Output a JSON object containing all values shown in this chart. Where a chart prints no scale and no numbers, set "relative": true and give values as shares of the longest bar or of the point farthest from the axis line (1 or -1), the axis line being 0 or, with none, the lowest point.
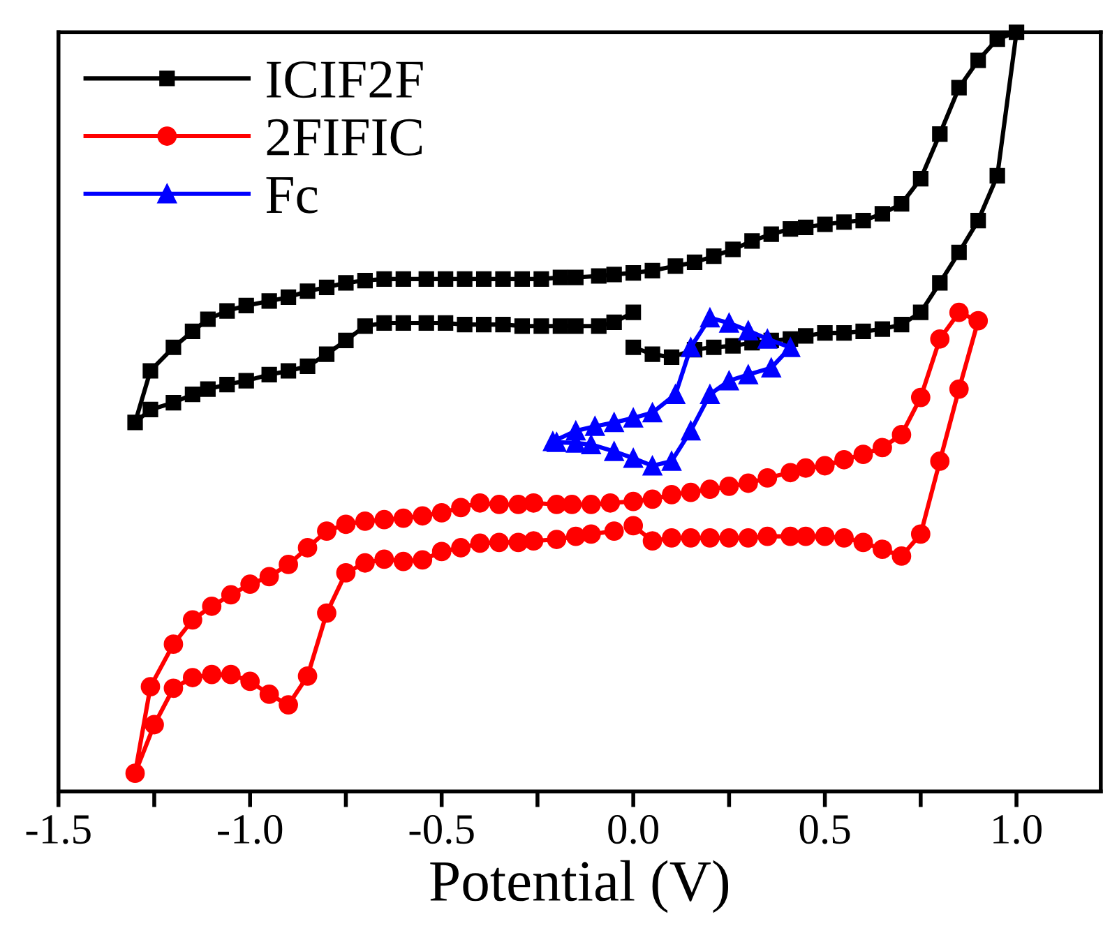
{
  "chart_data": {
    "type": "line",
    "xlabel": "Potential (V)",
    "relative": true,
    "tick_labels": "x",
    "legend": "top left",
    "grid": false,
    "line_style": "solid",
    "xlim": [
      -1.5,
      1.22
    ],
    "xticks": [
      {
        "value": -1.5,
        "label": "-1.5"
      },
      {
        "value": -1.25,
        "label": null
      },
      {
        "value": -1.0,
        "label": "-1.0"
      },
      {
        "value": -0.75,
        "label": null
      },
      {
        "value": -0.5,
        "label": "-0.5"
      },
      {
        "value": -0.25,
        "label": null
      },
      {
        "value": 0.0,
        "label": "0.0"
      },
      {
        "value": 0.25,
        "label": null
      },
      {
        "value": 0.5,
        "label": "0.5"
      },
      {
        "value": 0.75,
        "label": null
      },
      {
        "value": 1.0,
        "label": "1.0"
      }
    ],
    "series": [
      {
        "name": "ICIF2F",
        "color": "#000000",
        "marker": "square",
        "x": [
          0.0,
          -0.05,
          -0.09,
          -0.15,
          -0.19,
          -0.24,
          -0.29,
          -0.34,
          -0.39,
          -0.44,
          -0.49,
          -0.54,
          -0.6,
          -0.65,
          -0.7,
          -0.75,
          -0.8,
          -0.85,
          -0.9,
          -0.95,
          -1.01,
          -1.06,
          -1.11,
          -1.15,
          -1.2,
          -1.26,
          -1.3,
          -1.26,
          -1.2,
          -1.15,
          -1.11,
          -1.06,
          -1.01,
          -0.95,
          -0.9,
          -0.85,
          -0.8,
          -0.75,
          -0.7,
          -0.65,
          -0.6,
          -0.54,
          -0.49,
          -0.44,
          -0.39,
          -0.34,
          -0.29,
          -0.24,
          -0.19,
          -0.15,
          -0.09,
          -0.05,
          0.0,
          0.05,
          0.11,
          0.16,
          0.21,
          0.26,
          0.31,
          0.36,
          0.41,
          0.45,
          0.5,
          0.55,
          0.6,
          0.65,
          0.7,
          0.75,
          0.8,
          0.85,
          0.9,
          0.95,
          1.0,
          0.95,
          0.9,
          0.85,
          0.8,
          0.75,
          0.7,
          0.65,
          0.6,
          0.55,
          0.5,
          0.45,
          0.41,
          0.36,
          0.31,
          0.26,
          0.21,
          0.16,
          0.1,
          0.05,
          0.0
        ],
        "values": [
          0.631,
          0.618,
          0.613,
          0.613,
          0.613,
          0.613,
          0.613,
          0.615,
          0.615,
          0.615,
          0.617,
          0.617,
          0.617,
          0.617,
          0.613,
          0.594,
          0.576,
          0.56,
          0.554,
          0.549,
          0.541,
          0.536,
          0.53,
          0.523,
          0.512,
          0.503,
          0.486,
          0.554,
          0.585,
          0.606,
          0.622,
          0.633,
          0.64,
          0.646,
          0.651,
          0.659,
          0.664,
          0.67,
          0.673,
          0.675,
          0.675,
          0.675,
          0.675,
          0.675,
          0.675,
          0.675,
          0.675,
          0.675,
          0.677,
          0.677,
          0.679,
          0.681,
          0.683,
          0.686,
          0.692,
          0.697,
          0.705,
          0.714,
          0.725,
          0.734,
          0.741,
          0.743,
          0.747,
          0.75,
          0.752,
          0.761,
          0.774,
          0.807,
          0.866,
          0.927,
          0.963,
          0.991,
          1.0,
          0.811,
          0.752,
          0.71,
          0.67,
          0.631,
          0.615,
          0.609,
          0.606,
          0.604,
          0.604,
          0.6,
          0.596,
          0.594,
          0.591,
          0.587,
          0.585,
          0.582,
          0.572,
          0.576,
          0.585
        ]
      },
      {
        "name": "2FIFIC",
        "color": "#ff0000",
        "marker": "circle",
        "x": [
          0.0,
          0.05,
          0.1,
          0.15,
          0.2,
          0.25,
          0.3,
          0.35,
          0.41,
          0.45,
          0.5,
          0.55,
          0.6,
          0.65,
          0.7,
          0.75,
          0.8,
          0.85,
          0.9,
          0.85,
          0.8,
          0.75,
          0.7,
          0.65,
          0.6,
          0.55,
          0.5,
          0.45,
          0.41,
          0.35,
          0.3,
          0.25,
          0.2,
          0.15,
          0.1,
          0.05,
          0.0,
          -0.06,
          -0.11,
          -0.16,
          -0.2,
          -0.26,
          -0.3,
          -0.35,
          -0.4,
          -0.45,
          -0.5,
          -0.55,
          -0.6,
          -0.65,
          -0.7,
          -0.75,
          -0.8,
          -0.85,
          -0.9,
          -0.95,
          -1.0,
          -1.05,
          -1.1,
          -1.15,
          -1.2,
          -1.26,
          -1.3,
          -1.25,
          -1.2,
          -1.15,
          -1.1,
          -1.05,
          -1.0,
          -0.95,
          -0.9,
          -0.85,
          -0.8,
          -0.75,
          -0.7,
          -0.65,
          -0.6,
          -0.55,
          -0.5,
          -0.45,
          -0.4,
          -0.35,
          -0.3,
          -0.26,
          -0.2,
          -0.15,
          -0.11,
          -0.05
        ],
        "values": [
          0.35,
          0.33,
          0.334,
          0.334,
          0.334,
          0.334,
          0.334,
          0.336,
          0.336,
          0.336,
          0.336,
          0.334,
          0.328,
          0.319,
          0.31,
          0.339,
          0.435,
          0.53,
          0.62,
          0.631,
          0.596,
          0.519,
          0.47,
          0.453,
          0.444,
          0.437,
          0.429,
          0.426,
          0.42,
          0.413,
          0.406,
          0.402,
          0.398,
          0.394,
          0.391,
          0.385,
          0.382,
          0.38,
          0.378,
          0.378,
          0.378,
          0.38,
          0.378,
          0.378,
          0.38,
          0.374,
          0.367,
          0.363,
          0.36,
          0.358,
          0.356,
          0.352,
          0.343,
          0.321,
          0.299,
          0.283,
          0.273,
          0.259,
          0.244,
          0.226,
          0.194,
          0.138,
          0.024,
          0.088,
          0.136,
          0.15,
          0.154,
          0.154,
          0.145,
          0.128,
          0.114,
          0.152,
          0.235,
          0.288,
          0.301,
          0.306,
          0.303,
          0.305,
          0.316,
          0.321,
          0.327,
          0.328,
          0.328,
          0.33,
          0.332,
          0.336,
          0.339,
          0.343
        ]
      },
      {
        "name": "Fc",
        "color": "#0000ff",
        "marker": "triangle",
        "x": [
          -0.21,
          -0.15,
          -0.1,
          -0.05,
          0.0,
          0.05,
          0.11,
          0.15,
          0.2,
          0.25,
          0.3,
          0.35,
          0.41,
          0.36,
          0.3,
          0.25,
          0.2,
          0.15,
          0.1,
          0.05,
          0.0,
          -0.05,
          -0.11,
          -0.15,
          -0.2
        ],
        "values": [
          0.461,
          0.475,
          0.481,
          0.486,
          0.492,
          0.499,
          0.523,
          0.585,
          0.624,
          0.617,
          0.607,
          0.596,
          0.585,
          0.558,
          0.549,
          0.541,
          0.523,
          0.475,
          0.435,
          0.429,
          0.439,
          0.448,
          0.457,
          0.459,
          0.46
        ]
      }
    ]
  }
}
